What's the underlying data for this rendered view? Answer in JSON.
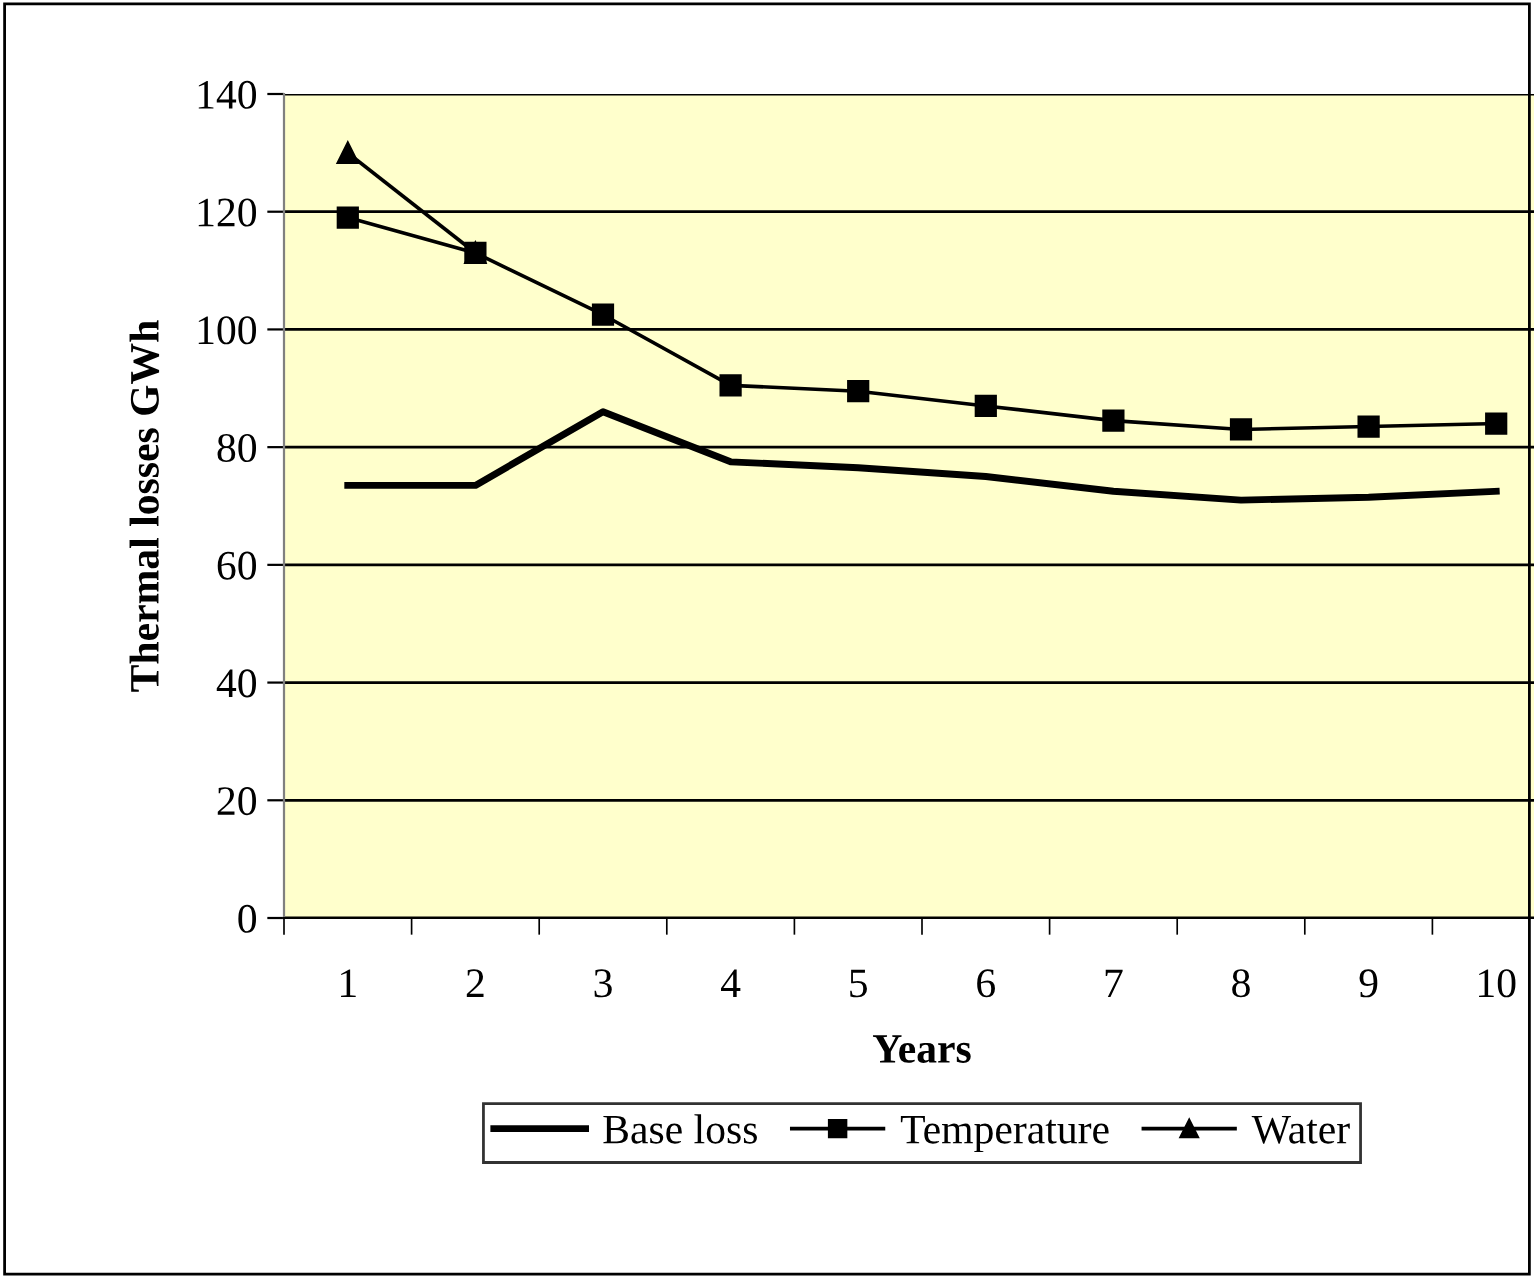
{
  "chart_data": {
    "type": "line",
    "xlabel": "Years",
    "ylabel": "Thermal losses GWh",
    "categories": [
      "1",
      "2",
      "3",
      "4",
      "5",
      "6",
      "7",
      "8",
      "9",
      "10"
    ],
    "series": [
      {
        "name": "Base loss",
        "color": "#000000",
        "marker": "none",
        "values": [
          73.5,
          73.5,
          86,
          77.5,
          76.5,
          75,
          72.5,
          71,
          71.5,
          72.5
        ]
      },
      {
        "name": "Temperature",
        "color": "#000000",
        "marker": "square",
        "values": [
          119,
          113,
          102.5,
          90.5,
          89.5,
          87,
          84.5,
          83,
          83.5,
          84
        ]
      },
      {
        "name": "Water",
        "color": "#000000",
        "marker": "triangle",
        "values": [
          130,
          113,
          null,
          null,
          null,
          null,
          null,
          null,
          null,
          null
        ]
      }
    ],
    "ylim": [
      0,
      140
    ],
    "yticks": [
      0,
      20,
      40,
      60,
      80,
      100,
      120,
      140
    ],
    "grid": "y",
    "legend": "bottom"
  }
}
